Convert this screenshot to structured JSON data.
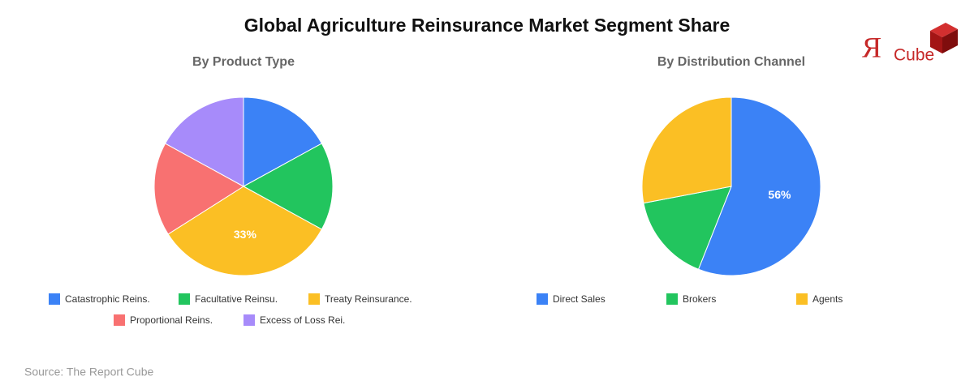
{
  "title": "Global Agriculture Reinsurance Market Segment Share",
  "logo": {
    "mark": "Я",
    "text": "Cube"
  },
  "source": "Source: The Report Cube",
  "chart_data": [
    {
      "type": "pie",
      "title": "By Product Type",
      "categories": [
        "Catastrophic Reins.",
        "Facultative Reinsu.",
        "Treaty Reinsurance.",
        "Proportional Reins.",
        "Excess of Loss Rei."
      ],
      "values": [
        17,
        16,
        33,
        17,
        17
      ],
      "value_labels": [
        null,
        null,
        "33%",
        null,
        null
      ],
      "colors": [
        "#3b82f6",
        "#22c55e",
        "#fbbf24",
        "#f87171",
        "#a78bfa"
      ]
    },
    {
      "type": "pie",
      "title": "By Distribution Channel",
      "categories": [
        "Direct Sales",
        "Brokers",
        "Agents"
      ],
      "values": [
        56,
        16,
        28
      ],
      "value_labels": [
        "56%",
        null,
        null
      ],
      "colors": [
        "#3b82f6",
        "#22c55e",
        "#fbbf24"
      ]
    }
  ]
}
